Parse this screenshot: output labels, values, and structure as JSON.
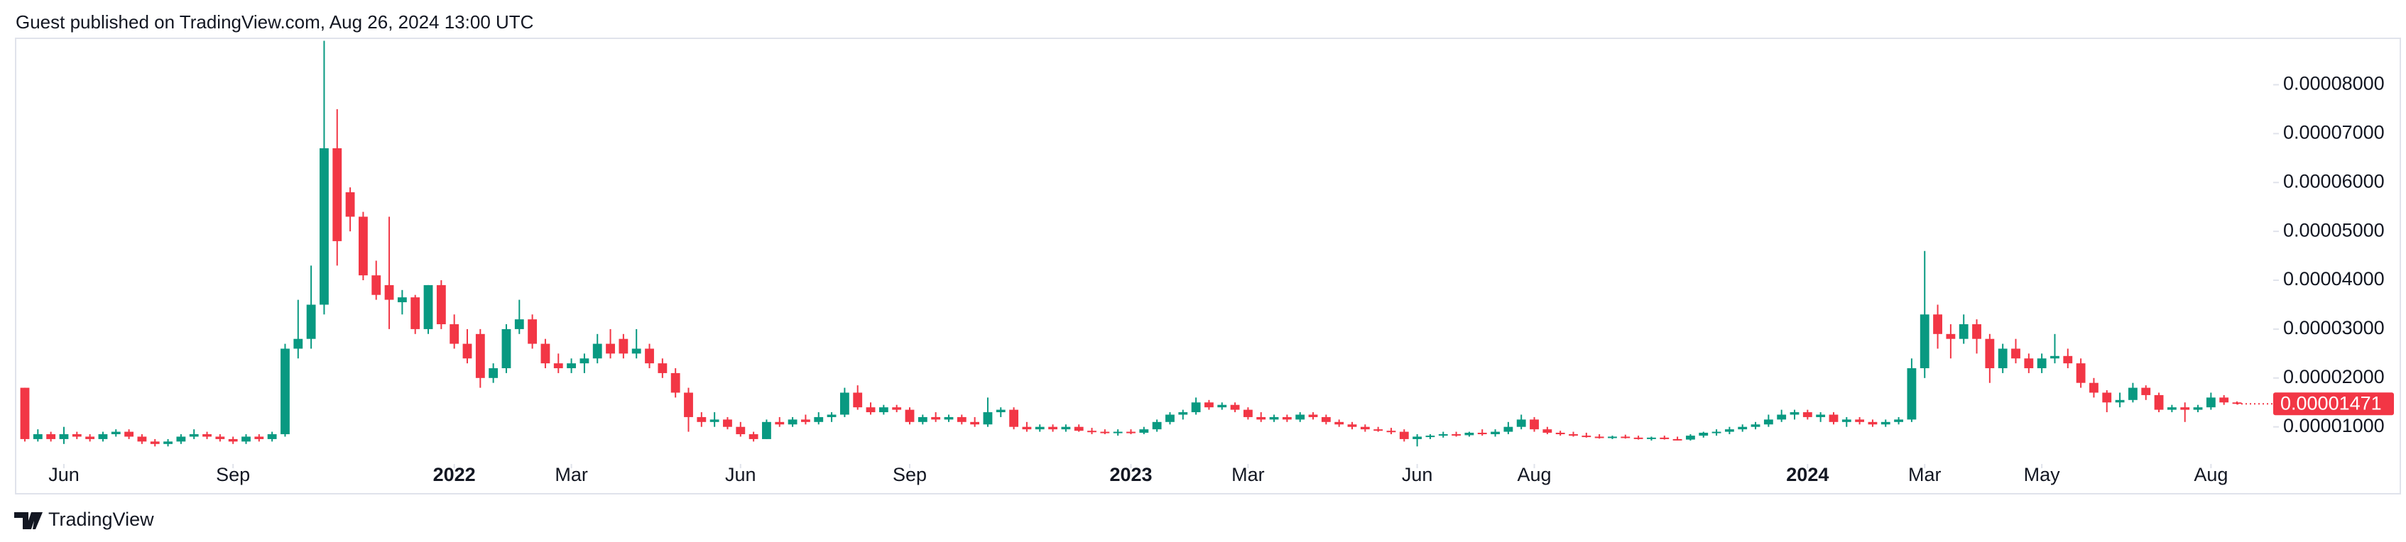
{
  "header": {
    "text": "Guest published on TradingView.com, Aug 26, 2024 13:00 UTC"
  },
  "footer": {
    "brand": "TradingView"
  },
  "chart_data": {
    "type": "candlestick",
    "up_color": "#089981",
    "down_color": "#f23645",
    "grid": false,
    "ylim": [
      2.7e-06,
      8.95e-05
    ],
    "yticks": [
      {
        "value": 1e-05,
        "label": "0.00001000"
      },
      {
        "value": 2e-05,
        "label": "0.00002000"
      },
      {
        "value": 3e-05,
        "label": "0.00003000"
      },
      {
        "value": 4e-05,
        "label": "0.00004000"
      },
      {
        "value": 5e-05,
        "label": "0.00005000"
      },
      {
        "value": 6e-05,
        "label": "0.00006000"
      },
      {
        "value": 7e-05,
        "label": "0.00007000"
      },
      {
        "value": 8e-05,
        "label": "0.00008000"
      }
    ],
    "xticks": [
      {
        "value": 3,
        "label": "Jun"
      },
      {
        "value": 16,
        "label": "Sep"
      },
      {
        "value": 33,
        "label": "2022"
      },
      {
        "value": 42,
        "label": "Mar"
      },
      {
        "value": 55,
        "label": "Jun"
      },
      {
        "value": 68,
        "label": "Sep"
      },
      {
        "value": 85,
        "label": "2023"
      },
      {
        "value": 94,
        "label": "Mar"
      },
      {
        "value": 107,
        "label": "Jun"
      },
      {
        "value": 116,
        "label": "Aug"
      },
      {
        "value": 137,
        "label": "2024"
      },
      {
        "value": 146,
        "label": "Mar"
      },
      {
        "value": 155,
        "label": "May"
      },
      {
        "value": 168,
        "label": "Aug"
      }
    ],
    "last_price": 1.471e-05,
    "ohlc": [
      [
        1.8e-05,
        1.8e-05,
        7e-06,
        7.5e-06
      ],
      [
        7.5e-06,
        9.5e-06,
        7e-06,
        8.5e-06
      ],
      [
        8.5e-06,
        9e-06,
        7e-06,
        7.5e-06
      ],
      [
        7.5e-06,
        1e-05,
        6.5e-06,
        8.5e-06
      ],
      [
        8.5e-06,
        9e-06,
        7.5e-06,
        8e-06
      ],
      [
        8e-06,
        8.5e-06,
        7e-06,
        7.5e-06
      ],
      [
        7.5e-06,
        9e-06,
        7e-06,
        8.5e-06
      ],
      [
        8.5e-06,
        9.5e-06,
        8e-06,
        9e-06
      ],
      [
        9e-06,
        9.5e-06,
        7.5e-06,
        8e-06
      ],
      [
        8e-06,
        8.5e-06,
        6.5e-06,
        7e-06
      ],
      [
        7e-06,
        7.5e-06,
        6e-06,
        6.5e-06
      ],
      [
        6.5e-06,
        7.5e-06,
        6e-06,
        7e-06
      ],
      [
        7e-06,
        8.5e-06,
        6.5e-06,
        8e-06
      ],
      [
        8e-06,
        9.5e-06,
        7.5e-06,
        8.5e-06
      ],
      [
        8.5e-06,
        9e-06,
        7.5e-06,
        8e-06
      ],
      [
        8e-06,
        8.5e-06,
        7e-06,
        7.5e-06
      ],
      [
        7.5e-06,
        8e-06,
        6.5e-06,
        7e-06
      ],
      [
        7e-06,
        8.5e-06,
        6.5e-06,
        8e-06
      ],
      [
        8e-06,
        8.5e-06,
        7e-06,
        7.5e-06
      ],
      [
        7.5e-06,
        9e-06,
        7e-06,
        8.5e-06
      ],
      [
        8.5e-06,
        2.7e-05,
        8e-06,
        2.6e-05
      ],
      [
        2.6e-05,
        3.6e-05,
        2.4e-05,
        2.8e-05
      ],
      [
        2.8e-05,
        4.3e-05,
        2.6e-05,
        3.5e-05
      ],
      [
        3.5e-05,
        8.9e-05,
        3.3e-05,
        6.7e-05
      ],
      [
        6.7e-05,
        7.5e-05,
        4.3e-05,
        4.8e-05
      ],
      [
        5.8e-05,
        5.9e-05,
        5e-05,
        5.3e-05
      ],
      [
        5.3e-05,
        5.4e-05,
        4e-05,
        4.1e-05
      ],
      [
        4.1e-05,
        4.4e-05,
        3.6e-05,
        3.7e-05
      ],
      [
        3.9e-05,
        5.3e-05,
        3e-05,
        3.6e-05
      ],
      [
        3.55e-05,
        3.8e-05,
        3.3e-05,
        3.65e-05
      ],
      [
        3.65e-05,
        3.7e-05,
        2.9e-05,
        3e-05
      ],
      [
        3e-05,
        3.9e-05,
        2.9e-05,
        3.9e-05
      ],
      [
        3.9e-05,
        4e-05,
        3e-05,
        3.1e-05
      ],
      [
        3.1e-05,
        3.3e-05,
        2.6e-05,
        2.7e-05
      ],
      [
        2.7e-05,
        3e-05,
        2.3e-05,
        2.4e-05
      ],
      [
        2.9e-05,
        3e-05,
        1.8e-05,
        2e-05
      ],
      [
        2e-05,
        2.3e-05,
        1.9e-05,
        2.2e-05
      ],
      [
        2.2e-05,
        3.1e-05,
        2.1e-05,
        3e-05
      ],
      [
        3e-05,
        3.6e-05,
        2.9e-05,
        3.2e-05
      ],
      [
        3.2e-05,
        3.3e-05,
        2.6e-05,
        2.7e-05
      ],
      [
        2.7e-05,
        2.8e-05,
        2.2e-05,
        2.3e-05
      ],
      [
        2.3e-05,
        2.5e-05,
        2.1e-05,
        2.2e-05
      ],
      [
        2.2e-05,
        2.4e-05,
        2.1e-05,
        2.3e-05
      ],
      [
        2.3e-05,
        2.5e-05,
        2.1e-05,
        2.4e-05
      ],
      [
        2.4e-05,
        2.9e-05,
        2.3e-05,
        2.7e-05
      ],
      [
        2.7e-05,
        3e-05,
        2.4e-05,
        2.5e-05
      ],
      [
        2.8e-05,
        2.9e-05,
        2.4e-05,
        2.5e-05
      ],
      [
        2.5e-05,
        3e-05,
        2.4e-05,
        2.6e-05
      ],
      [
        2.6e-05,
        2.7e-05,
        2.2e-05,
        2.3e-05
      ],
      [
        2.3e-05,
        2.4e-05,
        2e-05,
        2.1e-05
      ],
      [
        2.1e-05,
        2.2e-05,
        1.6e-05,
        1.7e-05
      ],
      [
        1.7e-05,
        1.8e-05,
        9e-06,
        1.2e-05
      ],
      [
        1.2e-05,
        1.3e-05,
        1e-05,
        1.1e-05
      ],
      [
        1.1e-05,
        1.3e-05,
        1e-05,
        1.15e-05
      ],
      [
        1.15e-05,
        1.2e-05,
        9.5e-06,
        1e-05
      ],
      [
        1e-05,
        1.1e-05,
        8e-06,
        8.5e-06
      ],
      [
        8.5e-06,
        9e-06,
        7e-06,
        7.5e-06
      ],
      [
        7.5e-06,
        1.15e-05,
        7.5e-06,
        1.1e-05
      ],
      [
        1.1e-05,
        1.2e-05,
        1e-05,
        1.05e-05
      ],
      [
        1.05e-05,
        1.2e-05,
        1e-05,
        1.15e-05
      ],
      [
        1.15e-05,
        1.25e-05,
        1.05e-05,
        1.1e-05
      ],
      [
        1.1e-05,
        1.3e-05,
        1.05e-05,
        1.2e-05
      ],
      [
        1.2e-05,
        1.3e-05,
        1.1e-05,
        1.25e-05
      ],
      [
        1.25e-05,
        1.8e-05,
        1.2e-05,
        1.7e-05
      ],
      [
        1.7e-05,
        1.85e-05,
        1.35e-05,
        1.4e-05
      ],
      [
        1.4e-05,
        1.5e-05,
        1.25e-05,
        1.3e-05
      ],
      [
        1.3e-05,
        1.45e-05,
        1.25e-05,
        1.4e-05
      ],
      [
        1.4e-05,
        1.45e-05,
        1.3e-05,
        1.35e-05
      ],
      [
        1.35e-05,
        1.4e-05,
        1.05e-05,
        1.1e-05
      ],
      [
        1.1e-05,
        1.25e-05,
        1.05e-05,
        1.2e-05
      ],
      [
        1.2e-05,
        1.3e-05,
        1.1e-05,
        1.15e-05
      ],
      [
        1.15e-05,
        1.25e-05,
        1.1e-05,
        1.2e-05
      ],
      [
        1.2e-05,
        1.25e-05,
        1.05e-05,
        1.1e-05
      ],
      [
        1.1e-05,
        1.2e-05,
        1e-05,
        1.05e-05
      ],
      [
        1.05e-05,
        1.6e-05,
        1e-05,
        1.3e-05
      ],
      [
        1.3e-05,
        1.4e-05,
        1.2e-05,
        1.35e-05
      ],
      [
        1.35e-05,
        1.4e-05,
        9.5e-06,
        1e-05
      ],
      [
        1e-05,
        1.1e-05,
        9e-06,
        9.5e-06
      ],
      [
        9.5e-06,
        1.05e-05,
        9e-06,
        1e-05
      ],
      [
        1e-05,
        1.05e-05,
        9e-06,
        9.5e-06
      ],
      [
        9.5e-06,
        1.05e-05,
        9e-06,
        1e-05
      ],
      [
        1e-05,
        1.05e-05,
        9e-06,
        9.2e-06
      ],
      [
        9.2e-06,
        9.8e-06,
        8.5e-06,
        9e-06
      ],
      [
        9e-06,
        9.5e-06,
        8.5e-06,
        8.8e-06
      ],
      [
        8.8e-06,
        9.5e-06,
        8.2e-06,
        9e-06
      ],
      [
        9e-06,
        9.5e-06,
        8.5e-06,
        8.8e-06
      ],
      [
        8.8e-06,
        1e-05,
        8.5e-06,
        9.5e-06
      ],
      [
        9.5e-06,
        1.15e-05,
        9e-06,
        1.1e-05
      ],
      [
        1.1e-05,
        1.3e-05,
        1.05e-05,
        1.25e-05
      ],
      [
        1.25e-05,
        1.35e-05,
        1.15e-05,
        1.3e-05
      ],
      [
        1.3e-05,
        1.6e-05,
        1.25e-05,
        1.5e-05
      ],
      [
        1.5e-05,
        1.55e-05,
        1.35e-05,
        1.4e-05
      ],
      [
        1.4e-05,
        1.5e-05,
        1.35e-05,
        1.45e-05
      ],
      [
        1.45e-05,
        1.5e-05,
        1.3e-05,
        1.35e-05
      ],
      [
        1.35e-05,
        1.4e-05,
        1.15e-05,
        1.2e-05
      ],
      [
        1.2e-05,
        1.3e-05,
        1.1e-05,
        1.15e-05
      ],
      [
        1.15e-05,
        1.25e-05,
        1.1e-05,
        1.2e-05
      ],
      [
        1.2e-05,
        1.25e-05,
        1.1e-05,
        1.15e-05
      ],
      [
        1.15e-05,
        1.3e-05,
        1.1e-05,
        1.25e-05
      ],
      [
        1.25e-05,
        1.3e-05,
        1.15e-05,
        1.2e-05
      ],
      [
        1.2e-05,
        1.25e-05,
        1.05e-05,
        1.1e-05
      ],
      [
        1.1e-05,
        1.15e-05,
        1e-05,
        1.05e-05
      ],
      [
        1.05e-05,
        1.1e-05,
        9.5e-06,
        1e-05
      ],
      [
        1e-05,
        1.05e-05,
        9e-06,
        9.5e-06
      ],
      [
        9.5e-06,
        1e-05,
        9e-06,
        9.2e-06
      ],
      [
        9.2e-06,
        9.8e-06,
        8.5e-06,
        9e-06
      ],
      [
        9e-06,
        9.5e-06,
        7e-06,
        7.5e-06
      ],
      [
        7.5e-06,
        8.5e-06,
        6e-06,
        8e-06
      ],
      [
        8e-06,
        8.5e-06,
        7.5e-06,
        8.2e-06
      ],
      [
        8.2e-06,
        9e-06,
        7.8e-06,
        8.5e-06
      ],
      [
        8.5e-06,
        9e-06,
        8e-06,
        8.3e-06
      ],
      [
        8.3e-06,
        9e-06,
        8e-06,
        8.8e-06
      ],
      [
        8.8e-06,
        9.5e-06,
        8.2e-06,
        8.5e-06
      ],
      [
        8.5e-06,
        9.5e-06,
        8e-06,
        9e-06
      ],
      [
        9e-06,
        1.1e-05,
        8.5e-06,
        1e-05
      ],
      [
        1e-05,
        1.25e-05,
        9.5e-06,
        1.15e-05
      ],
      [
        1.15e-05,
        1.2e-05,
        9e-06,
        9.5e-06
      ],
      [
        9.5e-06,
        1e-05,
        8.5e-06,
        8.8e-06
      ],
      [
        8.8e-06,
        9.2e-06,
        8.2e-06,
        8.5e-06
      ],
      [
        8.5e-06,
        9e-06,
        8e-06,
        8.2e-06
      ],
      [
        8.2e-06,
        8.8e-06,
        7.8e-06,
        8e-06
      ],
      [
        8e-06,
        8.5e-06,
        7.6e-06,
        7.8e-06
      ],
      [
        7.8e-06,
        8.2e-06,
        7.5e-06,
        8e-06
      ],
      [
        8e-06,
        8.4e-06,
        7.6e-06,
        7.8e-06
      ],
      [
        7.8e-06,
        8.2e-06,
        7.4e-06,
        7.6e-06
      ],
      [
        7.6e-06,
        8e-06,
        7.2e-06,
        7.8e-06
      ],
      [
        7.8e-06,
        8.2e-06,
        7.4e-06,
        7.5e-06
      ],
      [
        7.5e-06,
        8e-06,
        7.2e-06,
        7.4e-06
      ],
      [
        7.4e-06,
        8.5e-06,
        7.2e-06,
        8.2e-06
      ],
      [
        8.2e-06,
        9e-06,
        7.8e-06,
        8.8e-06
      ],
      [
        8.8e-06,
        9.5e-06,
        8.2e-06,
        9e-06
      ],
      [
        9e-06,
        1e-05,
        8.5e-06,
        9.5e-06
      ],
      [
        9.5e-06,
        1.05e-05,
        9e-06,
        1e-05
      ],
      [
        1e-05,
        1.1e-05,
        9.5e-06,
        1.05e-05
      ],
      [
        1.05e-05,
        1.25e-05,
        1e-05,
        1.15e-05
      ],
      [
        1.15e-05,
        1.35e-05,
        1.1e-05,
        1.25e-05
      ],
      [
        1.25e-05,
        1.35e-05,
        1.15e-05,
        1.3e-05
      ],
      [
        1.3e-05,
        1.35e-05,
        1.15e-05,
        1.2e-05
      ],
      [
        1.2e-05,
        1.3e-05,
        1.1e-05,
        1.25e-05
      ],
      [
        1.25e-05,
        1.3e-05,
        1.05e-05,
        1.1e-05
      ],
      [
        1.1e-05,
        1.2e-05,
        1e-05,
        1.15e-05
      ],
      [
        1.15e-05,
        1.2e-05,
        1.05e-05,
        1.1e-05
      ],
      [
        1.1e-05,
        1.15e-05,
        1e-05,
        1.05e-05
      ],
      [
        1.05e-05,
        1.15e-05,
        1e-05,
        1.1e-05
      ],
      [
        1.1e-05,
        1.2e-05,
        1.05e-05,
        1.15e-05
      ],
      [
        1.15e-05,
        2.4e-05,
        1.1e-05,
        2.2e-05
      ],
      [
        2.2e-05,
        4.6e-05,
        2e-05,
        3.3e-05
      ],
      [
        3.3e-05,
        3.5e-05,
        2.6e-05,
        2.9e-05
      ],
      [
        2.9e-05,
        3.1e-05,
        2.4e-05,
        2.8e-05
      ],
      [
        2.8e-05,
        3.3e-05,
        2.7e-05,
        3.1e-05
      ],
      [
        3.1e-05,
        3.2e-05,
        2.5e-05,
        2.8e-05
      ],
      [
        2.8e-05,
        2.9e-05,
        1.9e-05,
        2.2e-05
      ],
      [
        2.2e-05,
        2.7e-05,
        2.1e-05,
        2.6e-05
      ],
      [
        2.6e-05,
        2.8e-05,
        2.3e-05,
        2.4e-05
      ],
      [
        2.4e-05,
        2.5e-05,
        2.1e-05,
        2.2e-05
      ],
      [
        2.2e-05,
        2.5e-05,
        2.1e-05,
        2.4e-05
      ],
      [
        2.4e-05,
        2.9e-05,
        2.3e-05,
        2.45e-05
      ],
      [
        2.45e-05,
        2.6e-05,
        2.2e-05,
        2.3e-05
      ],
      [
        2.3e-05,
        2.4e-05,
        1.8e-05,
        1.9e-05
      ],
      [
        1.9e-05,
        2e-05,
        1.6e-05,
        1.7e-05
      ],
      [
        1.7e-05,
        1.75e-05,
        1.3e-05,
        1.5e-05
      ],
      [
        1.5e-05,
        1.7e-05,
        1.4e-05,
        1.55e-05
      ],
      [
        1.55e-05,
        1.9e-05,
        1.5e-05,
        1.8e-05
      ],
      [
        1.8e-05,
        1.85e-05,
        1.55e-05,
        1.65e-05
      ],
      [
        1.65e-05,
        1.7e-05,
        1.3e-05,
        1.35e-05
      ],
      [
        1.35e-05,
        1.45e-05,
        1.3e-05,
        1.4e-05
      ],
      [
        1.4e-05,
        1.5e-05,
        1.1e-05,
        1.35e-05
      ],
      [
        1.35e-05,
        1.45e-05,
        1.3e-05,
        1.4e-05
      ],
      [
        1.4e-05,
        1.7e-05,
        1.35e-05,
        1.6e-05
      ],
      [
        1.6e-05,
        1.65e-05,
        1.45e-05,
        1.5e-05
      ],
      [
        1.5e-05,
        1.52e-05,
        1.46e-05,
        1.471e-05
      ]
    ]
  }
}
